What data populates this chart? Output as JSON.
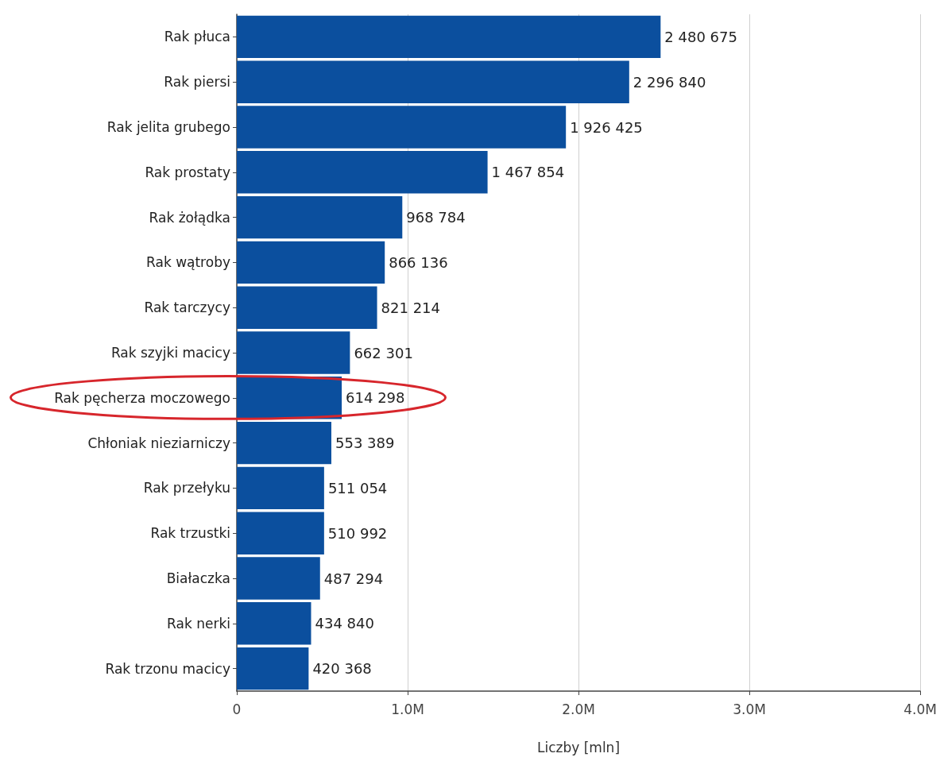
{
  "chart_data": {
    "type": "bar",
    "orientation": "horizontal",
    "xlabel": "Liczby [mln]",
    "categories": [
      "Rak płuca",
      "Rak piersi",
      "Rak jelita grubego",
      "Rak prostaty",
      "Rak żołądka",
      "Rak wątroby",
      "Rak tarczycy",
      "Rak szyjki macicy",
      "Rak pęcherza moczowego",
      "Chłoniak nieziarniczy",
      "Rak przełyku",
      "Rak trzustki",
      "Białaczka",
      "Rak nerki",
      "Rak trzonu macicy"
    ],
    "values": [
      2480675,
      2296840,
      1926425,
      1467854,
      968784,
      866136,
      821214,
      662301,
      614298,
      553389,
      511054,
      510992,
      487294,
      434840,
      420368
    ],
    "value_labels": [
      "2 480 675",
      "2 296 840",
      "1 926 425",
      "1 467 854",
      "968 784",
      "866 136",
      "821 214",
      "662 301",
      "614 298",
      "553 389",
      "511 054",
      "510 992",
      "487 294",
      "434 840",
      "420 368"
    ],
    "color": "#0b4f9e",
    "xlim": [
      0,
      4000000
    ],
    "xticks": [
      0,
      {
        "value": 1000000,
        "label": "1.0M"
      },
      {
        "value": 2000000,
        "label": "2.0M"
      },
      {
        "value": 3000000,
        "label": "3.0M"
      },
      {
        "value": 4000000,
        "label": "4.0M"
      }
    ],
    "grid": "x"
  }
}
